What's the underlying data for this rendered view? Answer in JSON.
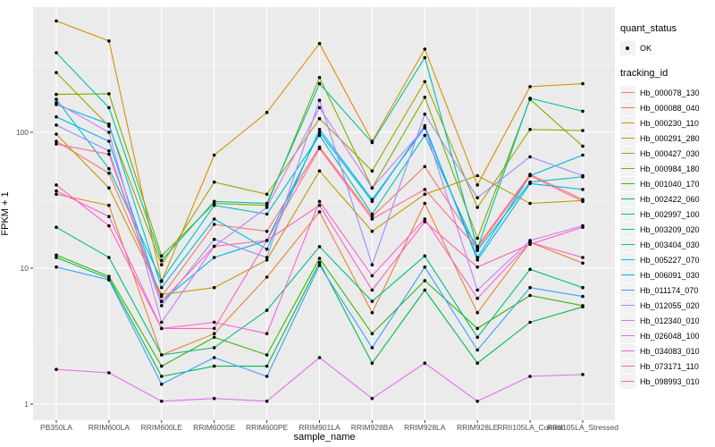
{
  "legend": {
    "quant_status_title": "quant_status",
    "quant_status_ok_label": "OK",
    "tracking_id_title": "tracking_id"
  },
  "chart_data": {
    "type": "line",
    "title": "",
    "xlabel": "sample_name",
    "ylabel": "FPKM + 1",
    "y_scale": "log10",
    "y_ticks": [
      "1",
      "10",
      "100"
    ],
    "y_tick_values": [
      1,
      10,
      100
    ],
    "ylim": [
      0.68,
      880
    ],
    "grid": true,
    "legend_position": "right",
    "panel_bg": "#EBEBEB",
    "grid_color": "#FFFFFF",
    "point_color": "#000000",
    "tick_color": "#333333",
    "quant_status": "OK",
    "categories": [
      "PB350LA",
      "RRIM600LA",
      "RRIM600LE",
      "RRIM600SE",
      "RRIM600PE",
      "RRIM901LA",
      "RRIM928BA",
      "RRIM928LA",
      "RRIM928LE",
      "RRII105LA_Control",
      "RRII105LA_Stressed"
    ],
    "series": [
      {
        "name": "Hb_000078_130",
        "color": "#F8766D",
        "values": [
          86,
          50,
          6.2,
          21,
          18.7,
          78,
          24,
          56,
          14.5,
          49,
          32
        ]
      },
      {
        "name": "Hb_000088_040",
        "color": "#EA8331",
        "values": [
          35,
          29,
          2.3,
          3.3,
          8.6,
          26,
          4.7,
          30,
          4.7,
          15.5,
          10.9
        ]
      },
      {
        "name": "Hb_000230_110",
        "color": "#D89000",
        "values": [
          660,
          470,
          8,
          68,
          140,
          450,
          86,
          410,
          41,
          217,
          228
        ]
      },
      {
        "name": "Hb_000291_280",
        "color": "#C09B00",
        "values": [
          97,
          39,
          6.4,
          7.2,
          11.5,
          52,
          18.7,
          35,
          48,
          30,
          31.5
        ]
      },
      {
        "name": "Hb_000427_030",
        "color": "#A3A500",
        "values": [
          275,
          111,
          10.6,
          43,
          35,
          126,
          52,
          236,
          28,
          105,
          103
        ]
      },
      {
        "name": "Hb_000984_180",
        "color": "#7CAE00",
        "values": [
          190,
          192,
          12.3,
          30,
          29,
          253,
          39,
          181,
          16.6,
          175,
          79
        ]
      },
      {
        "name": "Hb_001040_170",
        "color": "#39B600",
        "values": [
          12.5,
          8.7,
          1.9,
          3.1,
          2.3,
          11.8,
          3.3,
          8.1,
          3.6,
          6.3,
          5.3
        ]
      },
      {
        "name": "Hb_002422_060",
        "color": "#00BB4E",
        "values": [
          12,
          8.4,
          1.6,
          1.9,
          1.9,
          11,
          2.0,
          6.9,
          2.0,
          4.0,
          5.2
        ]
      },
      {
        "name": "Hb_002997_100",
        "color": "#00BF7D",
        "values": [
          20,
          12,
          2.3,
          2.6,
          4.9,
          14.4,
          5.7,
          12.3,
          3.1,
          9.8,
          7.2
        ]
      },
      {
        "name": "Hb_003209_020",
        "color": "#00C1A3",
        "values": [
          385,
          152,
          11.4,
          31,
          30,
          228,
          84,
          355,
          14,
          178,
          143
        ]
      },
      {
        "name": "Hb_003404_030",
        "color": "#00BFC4",
        "values": [
          175,
          54,
          8.1,
          29,
          25,
          95,
          25,
          95,
          13.5,
          43,
          47
        ]
      },
      {
        "name": "Hb_005227_070",
        "color": "#00BADE",
        "values": [
          160,
          115,
          7.2,
          23,
          13.8,
          105,
          32,
          108,
          12,
          48,
          68
        ]
      },
      {
        "name": "Hb_006091_030",
        "color": "#00B0F6",
        "values": [
          130,
          86,
          5.7,
          12,
          16,
          100,
          31,
          112,
          11.5,
          42,
          38
        ]
      },
      {
        "name": "Hb_011174_070",
        "color": "#35A2FF",
        "values": [
          10.2,
          8.2,
          1.4,
          2.2,
          1.6,
          10.5,
          2.6,
          10.2,
          2.5,
          7.2,
          6.2
        ]
      },
      {
        "name": "Hb_012055_020",
        "color": "#9590FF",
        "values": [
          113,
          73,
          5.3,
          16.3,
          12,
          172,
          10.6,
          136,
          33,
          66,
          48
        ]
      },
      {
        "name": "Hb_012340_010",
        "color": "#C77CFF",
        "values": [
          165,
          100,
          4.0,
          14.5,
          28,
          152,
          39,
          108,
          6.9,
          16,
          20.5
        ]
      },
      {
        "name": "Hb_026048_100",
        "color": "#E76BF3",
        "values": [
          1.8,
          1.7,
          1.05,
          1.1,
          1.05,
          2.2,
          1.1,
          2.0,
          1.05,
          1.6,
          1.65
        ]
      },
      {
        "name": "Hb_034083_010",
        "color": "#FA62DB",
        "values": [
          37,
          24,
          3.6,
          4.0,
          3.3,
          31,
          8.8,
          23,
          6.0,
          15.5,
          12
        ]
      },
      {
        "name": "Hb_073171_110",
        "color": "#FF62BC",
        "values": [
          41,
          20.5,
          3.6,
          3.6,
          16,
          29,
          6.9,
          22,
          10.2,
          15,
          20
        ]
      },
      {
        "name": "Hb_098993_010",
        "color": "#FF6A98",
        "values": [
          82,
          69,
          5.7,
          14.5,
          16,
          76,
          23,
          38,
          14,
          48,
          31
        ]
      }
    ]
  }
}
